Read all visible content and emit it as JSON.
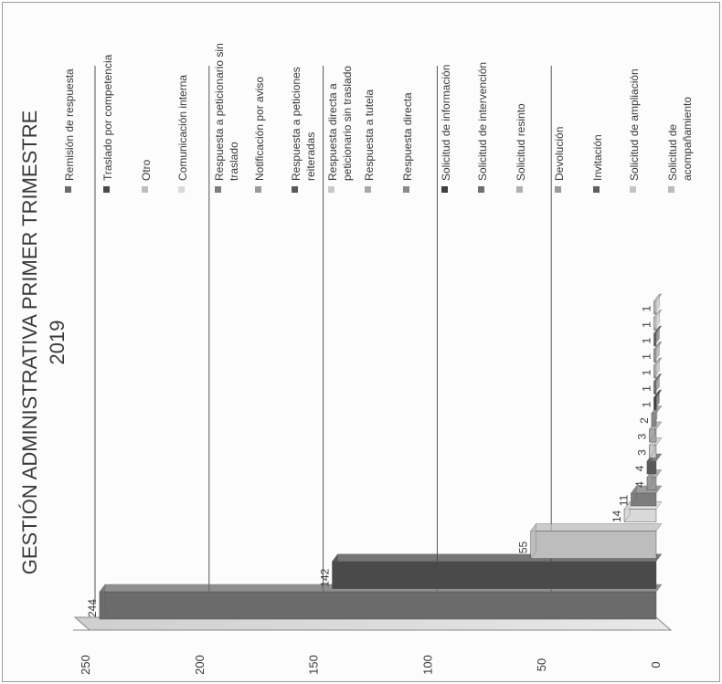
{
  "chart_data": {
    "type": "bar",
    "title_line1": "GESTIÓN ADMINISTRATIVA PRIMER TRIMESTRE",
    "title_line2": "2019",
    "categories": [
      "Remisión de respuesta",
      "Traslado por competencia",
      "Otro",
      "Comunicación interna",
      "Respuesta a peticionario sin traslado",
      "Notificación por aviso",
      "Respuesta a peticiones reiteradas",
      "Respuesta directa a peticionario sin traslado",
      "Respuesta a tutela",
      "Respuesta directa",
      "Solicitud de información",
      "Solicitud de intervención",
      "Solicitud resinto",
      "Devolución",
      "Invitación",
      "Solicitud de ampliación",
      "Solicitud de acompañamiento"
    ],
    "values": [
      244,
      142,
      55,
      14,
      11,
      4,
      4,
      3,
      3,
      2,
      1,
      1,
      1,
      1,
      1,
      1,
      1
    ],
    "value_labels": [
      "244",
      "142",
      "55",
      "14",
      "11",
      "4",
      "4",
      "3",
      "3",
      "2",
      "1",
      "1",
      "1",
      "1",
      "1",
      "1",
      "1"
    ],
    "ylim": [
      0,
      250
    ],
    "yticks": [
      0,
      50,
      100,
      150,
      200,
      250
    ],
    "legend_position": "right",
    "grid": true,
    "orientation": "rotated 90 degrees counter-clockwise",
    "colors": [
      "#6b6b6b",
      "#4a4a4a",
      "#bdbdbd",
      "#d9d9d9",
      "#7d7d7d",
      "#9a9a9a",
      "#5a5a5a",
      "#c8c8c8",
      "#a8a8a8",
      "#8a8a8a",
      "#3e3e3e",
      "#6e6e6e",
      "#b0b0b0",
      "#999999",
      "#5f5f5f",
      "#c4c4c4",
      "#bbbbbb"
    ]
  }
}
